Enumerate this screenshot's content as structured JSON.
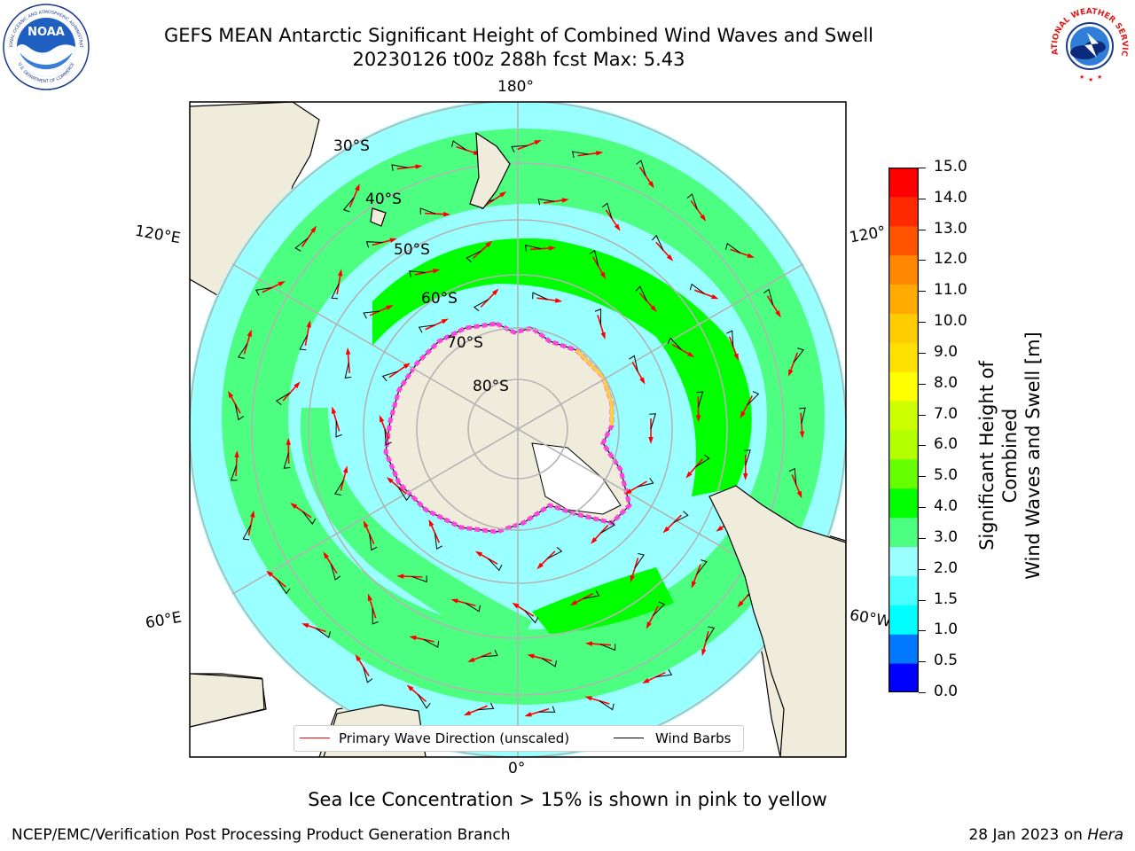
{
  "header": {
    "title_line1": "GEFS MEAN Antarctic Significant Height of Combined Wind Waves and Swell",
    "title_line2": "20230126 t00z 288h fcst   Max: 5.43"
  },
  "logos": {
    "left": "noaa-logo",
    "left_text": "NOAA",
    "left_ring_top": "NATIONAL OCEANIC AND ATMOSPHERIC ADMINISTRATION",
    "left_ring_bottom": "U.S. DEPARTMENT OF COMMERCE",
    "right": "nws-logo",
    "right_ring": "NATIONAL WEATHER SERVICE"
  },
  "map": {
    "projection": "south-polar-stereographic",
    "longitude_labels": {
      "top": "180°",
      "bottom": "0°",
      "left_upper": "120°E",
      "left_lower": "60°E",
      "right_upper": "120°",
      "right_lower": "60°W"
    },
    "latitude_labels": [
      "30°S",
      "40°S",
      "50°S",
      "60°S",
      "70°S",
      "80°S"
    ],
    "colors": {
      "land": "#efecdc",
      "coast": "#000000",
      "grid": "#b4b4b4",
      "wave_arrow": "#ff0000",
      "barb": "#000000"
    }
  },
  "colorbar": {
    "title_line1": "Significant Height of Combined",
    "title_line2": "Wind Waves and Swell [m]",
    "ticks": [
      "15.0",
      "14.0",
      "13.0",
      "12.0",
      "11.0",
      "10.0",
      "9.0",
      "8.0",
      "7.0",
      "6.0",
      "5.0",
      "4.0",
      "3.0",
      "2.0",
      "1.5",
      "1.0",
      "0.5",
      "0.0"
    ],
    "colors": [
      "#0000ff",
      "#0079ff",
      "#00ffff",
      "#4cffff",
      "#99ffff",
      "#4cff80",
      "#00ff00",
      "#66ff00",
      "#b3ff00",
      "#ccff00",
      "#ffff00",
      "#ffe000",
      "#ffcc00",
      "#ffaa00",
      "#ff8800",
      "#ff5500",
      "#ff2a00",
      "#ff0000"
    ]
  },
  "legend": {
    "primary_wave": "Primary Wave Direction (unscaled)",
    "wind_barbs": "Wind Barbs"
  },
  "annotation": "Sea Ice Concentration > 15% is shown in pink to yellow",
  "footer": {
    "left": "NCEP/EMC/Verification Post Processing Product Generation Branch",
    "right_date": "28 Jan 2023 on",
    "right_host": "Hera"
  }
}
